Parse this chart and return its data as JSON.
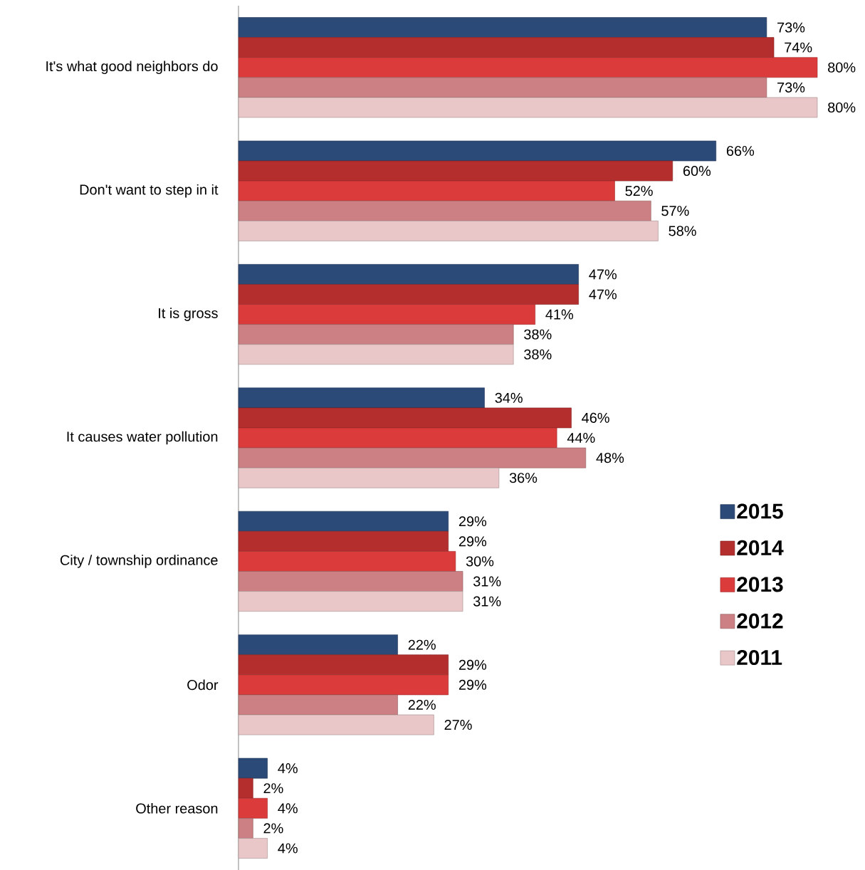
{
  "chart_data": {
    "type": "bar",
    "orientation": "horizontal",
    "tick_labels": "y",
    "legend": "right",
    "categories": [
      "It's what good neighbors do",
      "Don't want to step in it",
      "It is gross",
      "It causes water pollution",
      "City / township ordinance",
      "Odor",
      "Other reason"
    ],
    "series": [
      {
        "name": "2015",
        "color": "#2c4a78",
        "values": [
          73,
          66,
          47,
          34,
          29,
          22,
          4
        ],
        "value_labels": [
          "73%",
          "66%",
          "47%",
          "34%",
          "29%",
          "22%",
          "4%"
        ]
      },
      {
        "name": "2014",
        "color": "#b52e2e",
        "values": [
          74,
          60,
          47,
          46,
          29,
          29,
          2
        ],
        "value_labels": [
          "74%",
          "60%",
          "47%",
          "46%",
          "29%",
          "29%",
          "2%"
        ]
      },
      {
        "name": "2013",
        "color": "#dc3b3b",
        "values": [
          80,
          52,
          41,
          44,
          30,
          29,
          4
        ],
        "value_labels": [
          "80%",
          "52%",
          "41%",
          "44%",
          "30%",
          "29%",
          "4%"
        ]
      },
      {
        "name": "2012",
        "color": "#cd8084",
        "values": [
          73,
          57,
          38,
          48,
          31,
          22,
          2
        ],
        "value_labels": [
          "73%",
          "57%",
          "38%",
          "48%",
          "31%",
          "22%",
          "2%"
        ]
      },
      {
        "name": "2011",
        "color": "#e9c6c8",
        "values": [
          80,
          58,
          38,
          36,
          31,
          27,
          4
        ],
        "value_labels": [
          "80%",
          "58%",
          "38%",
          "36%",
          "31%",
          "27%",
          "4%"
        ]
      }
    ]
  }
}
